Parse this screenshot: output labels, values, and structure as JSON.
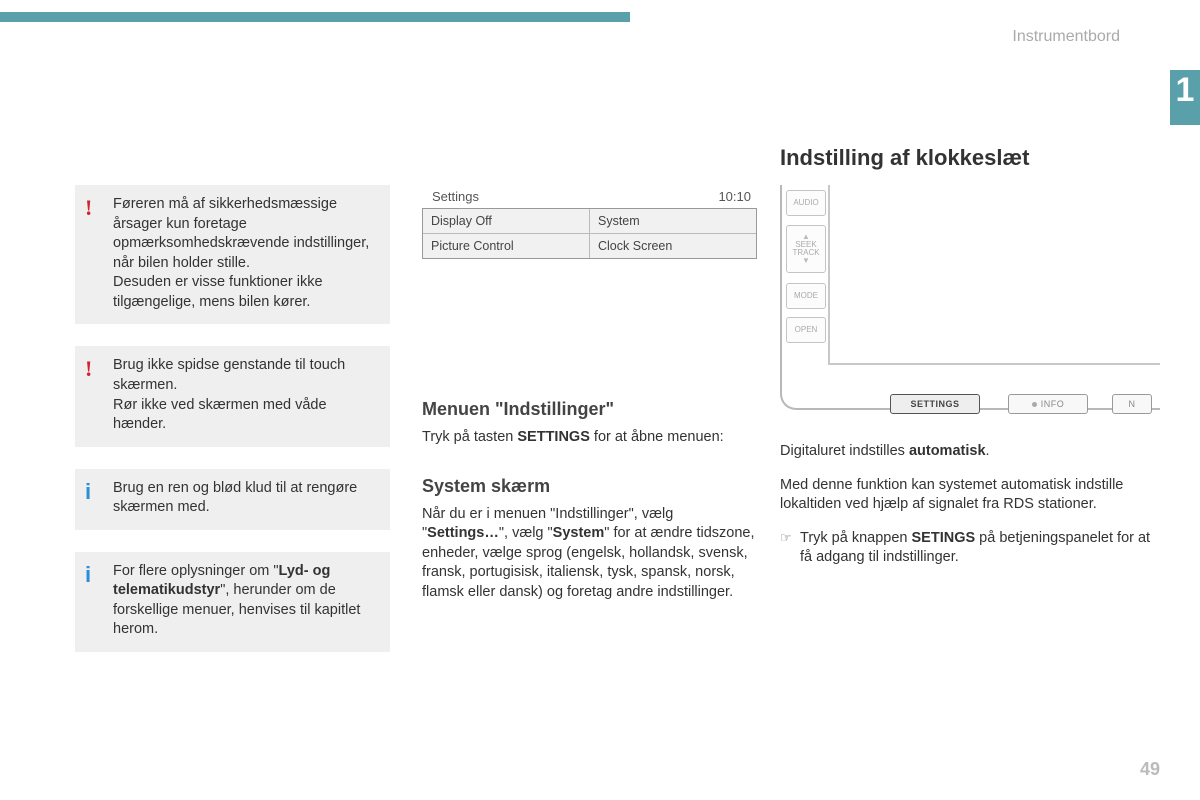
{
  "colors": {
    "accent": "#5aa0ab",
    "warn": "#d2232a",
    "info": "#2a8fd6",
    "muted": "#aaaaaa"
  },
  "header": {
    "breadcrumb": "Instrumentbord",
    "chapter_number": "1",
    "page_number": "49"
  },
  "col1": {
    "callouts": [
      {
        "kind": "warn",
        "html": "Føreren må af sikkerhedsmæssige årsager kun foretage opmærksomhedskrævende indstillinger, når bilen holder stille.<br>Desuden er visse funktioner ikke tilgængelige, mens bilen kører."
      },
      {
        "kind": "warn",
        "html": "Brug ikke spidse genstande til touch skærmen.<br>Rør ikke ved skærmen med våde hænder."
      },
      {
        "kind": "info",
        "html": "Brug en ren og blød klud til at rengøre skærmen med."
      },
      {
        "kind": "info",
        "html": "For flere oplysninger om \"<b>Lyd- og telematikudstyr</b>\", herunder om de forskellige menuer, henvises til kapitlet herom."
      }
    ]
  },
  "col2": {
    "settings_screen": {
      "header_left": "Settings",
      "header_right": "10:10",
      "rows": [
        [
          "Display Off",
          "System"
        ],
        [
          "Picture Control",
          "Clock Screen"
        ]
      ]
    },
    "heading_menu": "Menuen \"Indstillinger\"",
    "menu_intro": "Tryk på tasten <b>SETTINGS</b> for at åbne menuen:",
    "heading_system": "System skærm",
    "system_body": "Når du er i menuen \"Indstillinger\", vælg \"<b>Settings…</b>\", vælg \"<b>System</b>\" for at ændre tidszone, enheder, vælge sprog (engelsk, hollandsk, svensk, fransk, portugisisk, italiensk, tysk, spansk, norsk, flamsk eller dansk) og foretag andre indstillinger."
  },
  "col3": {
    "title": "Indstilling af klokkeslæt",
    "device": {
      "side_buttons": [
        "AUDIO",
        "SEEK\nTRACK",
        "MODE",
        "OPEN"
      ],
      "bottom_buttons": [
        {
          "label": "SETTINGS",
          "highlighted": true
        },
        {
          "label": "INFO",
          "highlighted": false,
          "dot": true
        },
        {
          "label": "N",
          "highlighted": false
        }
      ]
    },
    "body1": "Digitaluret indstilles <b>automatisk</b>.",
    "body2": "Med denne funktion kan systemet automatisk indstille lokaltiden ved hjælp af signalet fra RDS stationer.",
    "pointer": "Tryk på knappen <b>SETINGS</b> på betjeningspanelet for at få adgang til indstillinger."
  }
}
